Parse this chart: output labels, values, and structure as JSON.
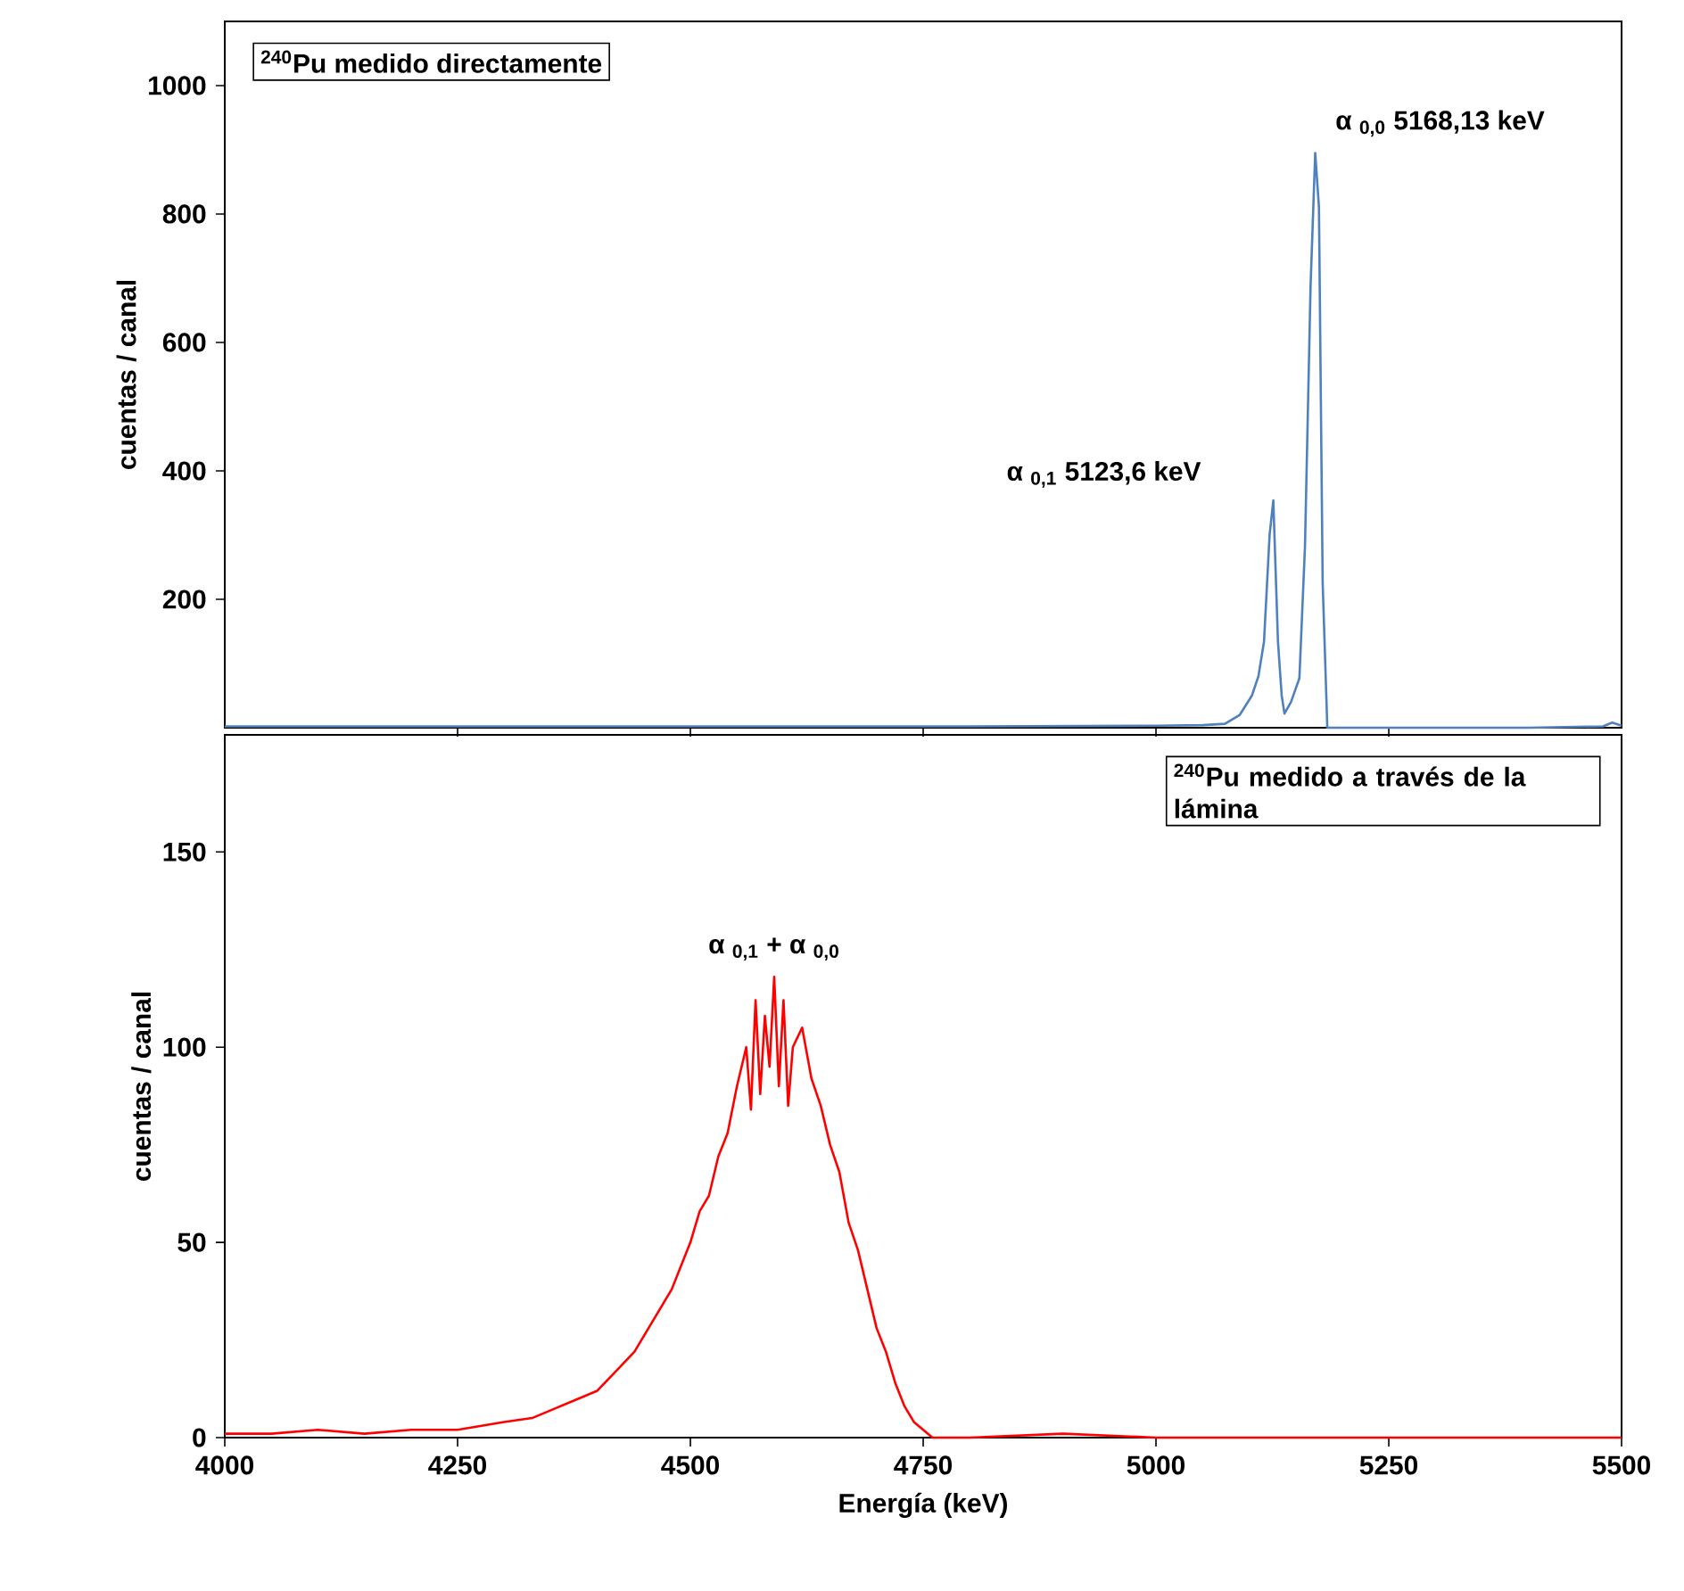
{
  "chart_data": [
    {
      "type": "line",
      "ylabel": "cuentas / canal",
      "color": "#4f81bd",
      "xlim": [
        4000,
        5500
      ],
      "ylim": [
        0,
        1100
      ],
      "xticks": [
        {
          "value": 4250,
          "label": null
        },
        {
          "value": 4500,
          "label": null
        },
        {
          "value": 4750,
          "label": null
        },
        {
          "value": 5000,
          "label": null
        },
        {
          "value": 5250,
          "label": null
        }
      ],
      "yticks": [
        200,
        400,
        600,
        800,
        1000
      ],
      "tick_labels": "y",
      "x": [
        4000,
        4200,
        4400,
        4600,
        4800,
        5000,
        5050,
        5074,
        5090,
        5103,
        5110,
        5116,
        5122,
        5126,
        5131,
        5135,
        5138,
        5145,
        5154,
        5160,
        5166,
        5171,
        5175,
        5179,
        5184,
        5200,
        5300,
        5400,
        5480,
        5490,
        5500
      ],
      "values": [
        2,
        2,
        2,
        2,
        2,
        3,
        4,
        6,
        20,
        50,
        80,
        134,
        300,
        354,
        134,
        50,
        22,
        40,
        77,
        282,
        688,
        895,
        811,
        226,
        0,
        0,
        0,
        0,
        2,
        8,
        3
      ],
      "annotations": [
        "$^{240}$Pu medido directamente",
        {
          "text": "α $_{0,0}$ 5168,13 keV",
          "x": 5171,
          "y": 895
        },
        {
          "text": "α $_{0,1}$ 5123,6 keV",
          "x": 5126,
          "y": 354
        }
      ]
    },
    {
      "type": "line",
      "xlabel": "Energía (keV)",
      "ylabel": "cuentas / canal",
      "color": "#ff0000",
      "xlim": [
        4000,
        5500
      ],
      "ylim": [
        0,
        180
      ],
      "xticks": [
        4000,
        4250,
        4500,
        4750,
        5000,
        5250,
        5500
      ],
      "yticks": [
        0,
        50,
        100,
        150
      ],
      "x": [
        4000,
        4050,
        4100,
        4150,
        4200,
        4250,
        4300,
        4330,
        4350,
        4380,
        4400,
        4420,
        4440,
        4460,
        4480,
        4500,
        4510,
        4520,
        4530,
        4540,
        4550,
        4560,
        4565,
        4570,
        4575,
        4580,
        4585,
        4590,
        4595,
        4600,
        4605,
        4610,
        4620,
        4630,
        4640,
        4650,
        4660,
        4670,
        4680,
        4690,
        4700,
        4710,
        4720,
        4730,
        4740,
        4750,
        4760,
        4800,
        4900,
        5000,
        5100,
        5500
      ],
      "values": [
        1,
        1,
        2,
        1,
        2,
        2,
        4,
        5,
        7,
        10,
        12,
        17,
        22,
        30,
        38,
        50,
        58,
        62,
        72,
        78,
        90,
        100,
        84,
        112,
        88,
        108,
        95,
        118,
        90,
        112,
        85,
        100,
        105,
        92,
        85,
        75,
        68,
        55,
        48,
        38,
        28,
        22,
        14,
        8,
        4,
        2,
        0,
        0,
        1,
        0,
        0,
        0
      ],
      "annotations": [
        "$^{240}$Pu medido a través de la lámina",
        {
          "text": "α $_{0,1}$ + α $_{0,0}$",
          "x": 4590,
          "y": 118
        }
      ]
    }
  ]
}
